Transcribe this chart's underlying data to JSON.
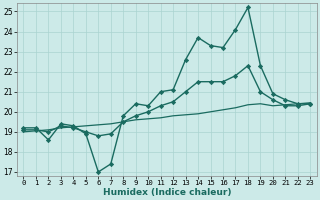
{
  "xlabel": "Humidex (Indice chaleur)",
  "bg_color": "#cceae8",
  "grid_color": "#aad4d0",
  "line_color": "#1a6b60",
  "xlim": [
    -0.5,
    23.5
  ],
  "ylim": [
    16.8,
    25.4
  ],
  "xticks": [
    0,
    1,
    2,
    3,
    4,
    5,
    6,
    7,
    8,
    9,
    10,
    11,
    12,
    13,
    14,
    15,
    16,
    17,
    18,
    19,
    20,
    21,
    22,
    23
  ],
  "yticks": [
    17,
    18,
    19,
    20,
    21,
    22,
    23,
    24,
    25
  ],
  "series": [
    {
      "x": [
        0,
        1,
        2,
        3,
        4,
        5,
        6,
        7,
        8,
        9,
        10,
        11,
        12,
        13,
        14,
        15,
        16,
        17,
        18,
        19,
        20,
        21,
        22,
        23
      ],
      "y": [
        19.2,
        19.2,
        18.6,
        19.4,
        19.3,
        18.9,
        17.0,
        17.4,
        19.8,
        20.4,
        20.3,
        21.0,
        21.1,
        22.6,
        23.7,
        23.3,
        23.2,
        24.1,
        25.2,
        22.3,
        20.9,
        20.6,
        20.4,
        20.4
      ],
      "marker": "D",
      "markersize": 2.2,
      "linewidth": 1.0
    },
    {
      "x": [
        0,
        1,
        2,
        3,
        4,
        5,
        6,
        7,
        8,
        9,
        10,
        11,
        12,
        13,
        14,
        15,
        16,
        17,
        18,
        19,
        20,
        21,
        22,
        23
      ],
      "y": [
        19.1,
        19.1,
        19.0,
        19.3,
        19.2,
        19.0,
        18.8,
        18.9,
        19.5,
        19.8,
        20.0,
        20.3,
        20.5,
        21.0,
        21.5,
        21.5,
        21.5,
        21.8,
        22.3,
        21.0,
        20.6,
        20.3,
        20.3,
        20.4
      ],
      "marker": "D",
      "markersize": 2.2,
      "linewidth": 1.0
    },
    {
      "x": [
        0,
        1,
        2,
        3,
        4,
        5,
        6,
        7,
        8,
        9,
        10,
        11,
        12,
        13,
        14,
        15,
        16,
        17,
        18,
        19,
        20,
        21,
        22,
        23
      ],
      "y": [
        19.0,
        19.05,
        19.1,
        19.2,
        19.25,
        19.3,
        19.35,
        19.4,
        19.5,
        19.6,
        19.65,
        19.7,
        19.8,
        19.85,
        19.9,
        20.0,
        20.1,
        20.2,
        20.35,
        20.4,
        20.3,
        20.35,
        20.4,
        20.45
      ],
      "marker": null,
      "markersize": 0,
      "linewidth": 0.9
    }
  ]
}
